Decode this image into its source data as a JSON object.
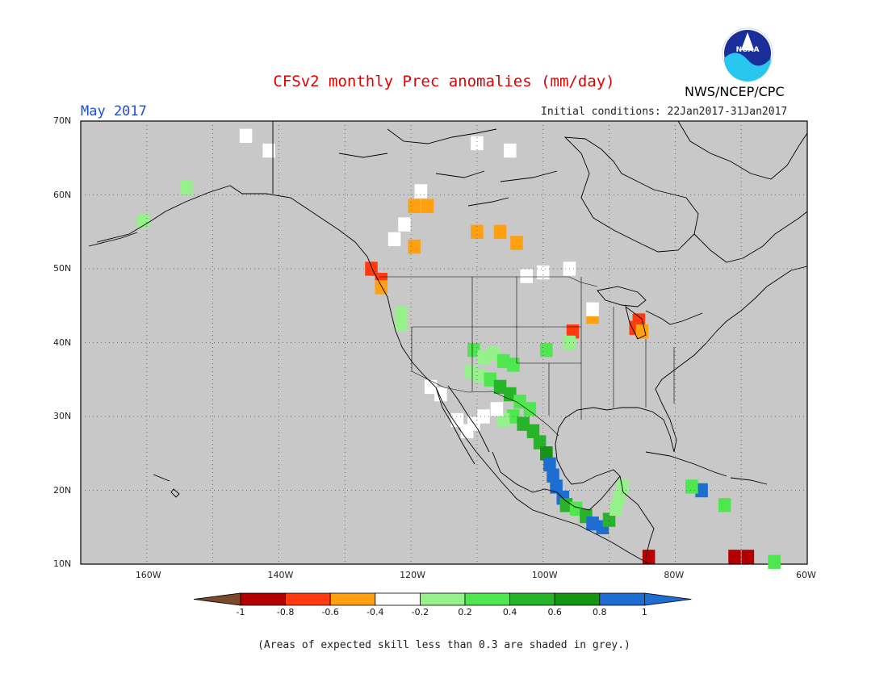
{
  "header": {
    "title": "CFSv2 monthly Prec anomalies (mm/day)",
    "target_month": "May 2017",
    "initial_conditions": "Initial conditions: 22Jan2017-31Jan2017",
    "organization": "NWS/NCEP/CPC",
    "logo_text": "NOAA"
  },
  "map": {
    "lon_range": [
      -170,
      -60
    ],
    "lat_range": [
      10,
      70
    ],
    "lat_ticks": [
      "70N",
      "60N",
      "50N",
      "40N",
      "30N",
      "20N",
      "10N"
    ],
    "lon_ticks": [
      "160W",
      "140W",
      "120W",
      "100W",
      "80W",
      "60W"
    ],
    "background_color": "#c8c8c8",
    "grid": true
  },
  "colorbar": {
    "ticks": [
      "-1",
      "-0.8",
      "-0.6",
      "-0.4",
      "-0.2",
      "0.2",
      "0.4",
      "0.6",
      "0.8",
      "1"
    ],
    "colors": [
      "#7a4a2a",
      "#b40000",
      "#ff3a10",
      "#ffa010",
      "#ffffff",
      "#96f08c",
      "#50e650",
      "#28b428",
      "#149614",
      "#1e6ed2"
    ]
  },
  "footnote": "(Areas of expected skill less than 0.3 are shaded in grey.)"
}
